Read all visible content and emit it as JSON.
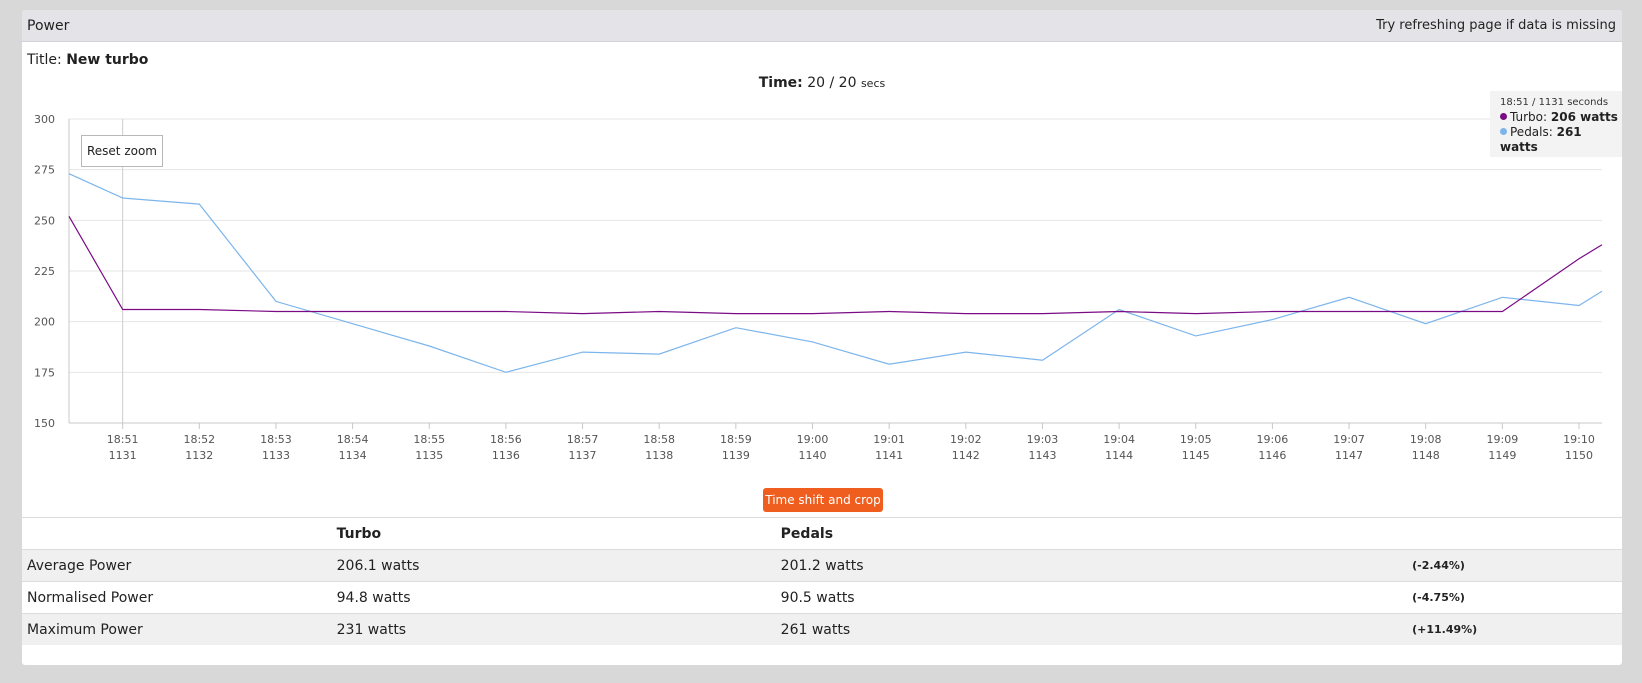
{
  "panel": {
    "title": "Power",
    "hint": "Try refreshing page if data is missing"
  },
  "session": {
    "title_label": "Title:",
    "title_value": "New turbo"
  },
  "time": {
    "label": "Time:",
    "value": "20 /",
    "total": "20",
    "unit": "secs"
  },
  "tooltip": {
    "time": "18:51",
    "seconds": "1131 seconds",
    "rows": [
      {
        "name": "Turbo",
        "value": "206 watts",
        "color": "#7a0b85"
      },
      {
        "name": "Pedals",
        "value": "261 watts",
        "color": "#7cb5ec"
      }
    ]
  },
  "buttons": {
    "reset_zoom": "Reset zoom",
    "time_shift": "Time shift and crop"
  },
  "chart_data": {
    "type": "line",
    "ylim": [
      150,
      300
    ],
    "yticks": [
      150,
      175,
      200,
      225,
      250,
      275,
      300
    ],
    "x": [
      1130.3,
      1131,
      1132,
      1133,
      1134,
      1135,
      1136,
      1137,
      1138,
      1139,
      1140,
      1141,
      1142,
      1143,
      1144,
      1145,
      1146,
      1147,
      1148,
      1149,
      1150,
      1150.3
    ],
    "xlim": [
      1130.3,
      1150.3
    ],
    "xtick_values": [
      1131,
      1132,
      1133,
      1134,
      1135,
      1136,
      1137,
      1138,
      1139,
      1140,
      1141,
      1142,
      1143,
      1144,
      1145,
      1146,
      1147,
      1148,
      1149,
      1150
    ],
    "xtick_labels": [
      [
        "18:51",
        "1131"
      ],
      [
        "18:52",
        "1132"
      ],
      [
        "18:53",
        "1133"
      ],
      [
        "18:54",
        "1134"
      ],
      [
        "18:55",
        "1135"
      ],
      [
        "18:56",
        "1136"
      ],
      [
        "18:57",
        "1137"
      ],
      [
        "18:58",
        "1138"
      ],
      [
        "18:59",
        "1139"
      ],
      [
        "19:00",
        "1140"
      ],
      [
        "19:01",
        "1141"
      ],
      [
        "19:02",
        "1142"
      ],
      [
        "19:03",
        "1143"
      ],
      [
        "19:04",
        "1144"
      ],
      [
        "19:05",
        "1145"
      ],
      [
        "19:06",
        "1146"
      ],
      [
        "19:07",
        "1147"
      ],
      [
        "19:08",
        "1148"
      ],
      [
        "19:09",
        "1149"
      ],
      [
        "19:10",
        "1150"
      ]
    ],
    "crosshair_x": 1131,
    "series": [
      {
        "name": "Turbo",
        "color": "#7a0b85",
        "values": [
          252,
          206,
          206,
          205,
          205,
          205,
          205,
          204,
          205,
          204,
          204,
          205,
          204,
          204,
          205,
          204,
          205,
          205,
          205,
          205,
          231,
          238
        ]
      },
      {
        "name": "Pedals",
        "color": "#7cb5ec",
        "values": [
          273,
          261,
          258,
          210,
          199,
          188,
          175,
          185,
          184,
          197,
          190,
          179,
          185,
          181,
          206,
          193,
          201,
          212,
          199,
          212,
          208,
          215
        ]
      }
    ]
  },
  "stats": {
    "headers": [
      "",
      "Turbo",
      "Pedals",
      ""
    ],
    "rows": [
      {
        "label": "Average Power",
        "turbo": "206.1 watts",
        "pedals": "201.2 watts",
        "diff": "(-2.44%)"
      },
      {
        "label": "Normalised Power",
        "turbo": "94.8 watts",
        "pedals": "90.5 watts",
        "diff": "(-4.75%)"
      },
      {
        "label": "Maximum Power",
        "turbo": "231 watts",
        "pedals": "261 watts",
        "diff": "(+11.49%)"
      }
    ]
  }
}
